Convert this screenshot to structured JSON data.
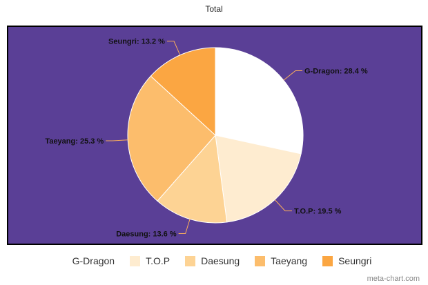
{
  "chart_data": {
    "type": "pie",
    "title": "Total",
    "slices": [
      {
        "name": "G-Dragon",
        "value": 28.4,
        "label": "G-Dragon: 28.4 %",
        "color": "#ffffff"
      },
      {
        "name": "T.O.P",
        "value": 19.5,
        "label": "T.O.P: 19.5 %",
        "color": "#feecd0"
      },
      {
        "name": "Daesung",
        "value": 13.6,
        "label": "Daesung: 13.6 %",
        "color": "#fdd394"
      },
      {
        "name": "Taeyang",
        "value": 25.3,
        "label": "Taeyang: 25.3 %",
        "color": "#fcbd6c"
      },
      {
        "name": "Seungri",
        "value": 13.2,
        "label": "Seungri: 13.2 %",
        "color": "#fba642"
      }
    ],
    "legend_position": "bottom",
    "background_color": "#5a3f96",
    "connector_color": "#fbae5a"
  },
  "watermark": "meta-chart.com"
}
